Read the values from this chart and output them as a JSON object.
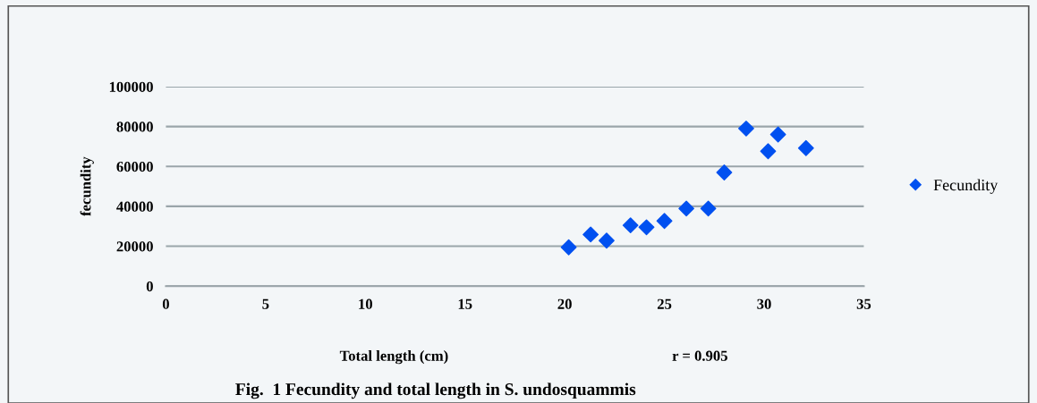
{
  "chart_data": {
    "type": "scatter",
    "title": "Fig.  1 Fecundity and total length in S. undosquammis",
    "xlabel": "Total length (cm)",
    "ylabel": "fecundity",
    "annotations": [
      "r = 0.905"
    ],
    "x": [
      20.2,
      21.3,
      22.1,
      23.3,
      24.1,
      25.0,
      26.1,
      27.2,
      28.0,
      29.1,
      30.2,
      30.7,
      32.1
    ],
    "series": [
      {
        "name": "Fecundity",
        "color": "#0050f0",
        "values": [
          19500,
          25900,
          22800,
          30500,
          29500,
          32700,
          38900,
          38900,
          57000,
          79000,
          67600,
          76000,
          69200
        ]
      }
    ],
    "xlim": [
      0,
      35
    ],
    "xticks": [
      0,
      5,
      10,
      15,
      20,
      25,
      30,
      35
    ],
    "ylim": [
      0,
      100000
    ],
    "yticks": [
      0,
      20000,
      40000,
      60000,
      80000,
      100000
    ],
    "grid": "y",
    "legend": "right",
    "marker": "diamond"
  }
}
